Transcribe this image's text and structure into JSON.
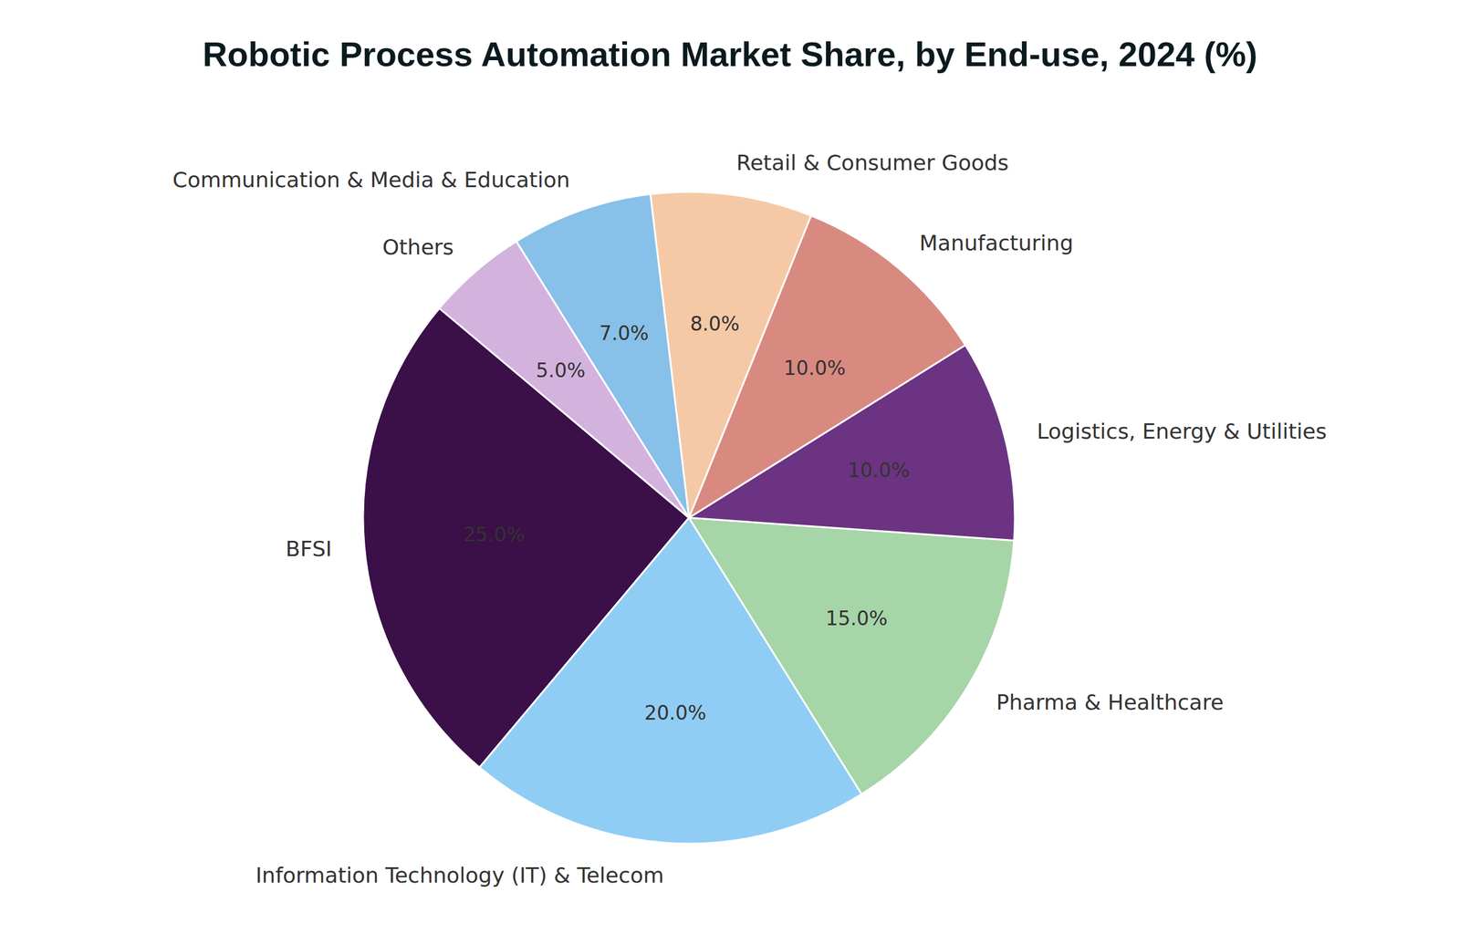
{
  "chart_data": {
    "type": "pie",
    "title": "Robotic Process Automation Market Share, by End-use, 2024 (%)",
    "categories": [
      "BFSI",
      "Information Technology (IT) & Telecom",
      "Pharma & Healthcare",
      "Logistics, Energy & Utilities",
      "Manufacturing",
      "Retail & Consumer Goods",
      "Communication & Media & Education",
      "Others"
    ],
    "values": [
      25,
      20,
      15,
      10,
      10,
      8,
      7,
      5
    ],
    "value_labels": [
      "25.0%",
      "20.0%",
      "15.0%",
      "10.0%",
      "10.0%",
      "8.0%",
      "7.0%",
      "5.0%"
    ],
    "colors": [
      "#3b0f48",
      "#90cdf4",
      "#a6d5a7",
      "#6b3381",
      "#d88a80",
      "#f5c9a6",
      "#87c0e8",
      "#d3b3de"
    ],
    "data_labels": true
  }
}
